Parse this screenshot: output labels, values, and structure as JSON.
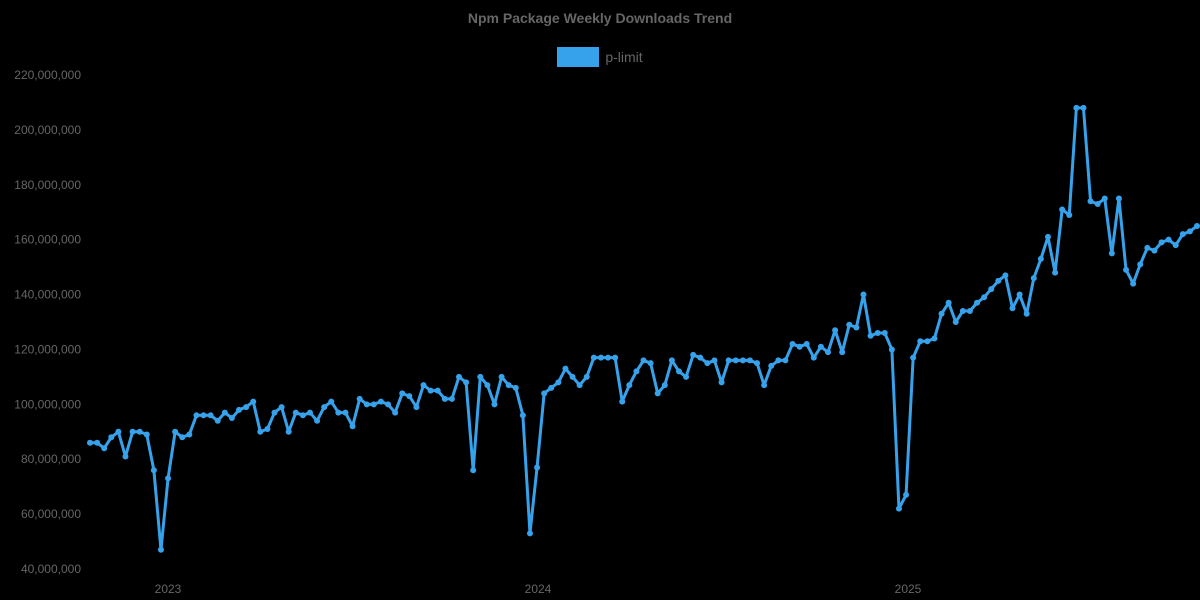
{
  "chart_data": {
    "type": "line",
    "title": "Npm Package Weekly Downloads Trend",
    "xlabel": "",
    "ylabel": "",
    "ylim": [
      40000000,
      220000000
    ],
    "yticks": [
      40000000,
      60000000,
      80000000,
      100000000,
      120000000,
      140000000,
      160000000,
      180000000,
      200000000,
      220000000
    ],
    "ytick_labels": [
      "40,000,000",
      "60,000,000",
      "80,000,000",
      "100,000,000",
      "120,000,000",
      "140,000,000",
      "160,000,000",
      "180,000,000",
      "200,000,000",
      "220,000,000"
    ],
    "xtick_labels": [
      "2023",
      "2024",
      "2025"
    ],
    "grid": false,
    "legend_position": "top",
    "series": [
      {
        "name": "p-limit",
        "color": "#36a2eb",
        "values": [
          86,
          86,
          84,
          88,
          90,
          81,
          90,
          90,
          89,
          76,
          47,
          73,
          90,
          88,
          89,
          96,
          96,
          96,
          94,
          97,
          95,
          98,
          99,
          101,
          90,
          91,
          97,
          99,
          90,
          97,
          96,
          97,
          94,
          99,
          101,
          97,
          97,
          92,
          102,
          100,
          100,
          101,
          100,
          97,
          104,
          103,
          99,
          107,
          105,
          105,
          102,
          102,
          110,
          108,
          76,
          110,
          107,
          100,
          110,
          107,
          106,
          96,
          53,
          77,
          104,
          106,
          108,
          113,
          110,
          107,
          110,
          117,
          117,
          117,
          117,
          101,
          107,
          112,
          116,
          115,
          104,
          107,
          116,
          112,
          110,
          118,
          117,
          115,
          116,
          108,
          116,
          116,
          116,
          116,
          115,
          107,
          114,
          116,
          116,
          122,
          121,
          122,
          117,
          121,
          119,
          127,
          119,
          129,
          128,
          140,
          125,
          126,
          126,
          120,
          62,
          67,
          117,
          123,
          123,
          124,
          133,
          137,
          130,
          134,
          134,
          137,
          139,
          142,
          145,
          147,
          135,
          140,
          133,
          146,
          153,
          161,
          148,
          171,
          169,
          208,
          208,
          174,
          173,
          175,
          155,
          175,
          149,
          144,
          151,
          157,
          156,
          159,
          160,
          158,
          162,
          163,
          165
        ]
      }
    ]
  },
  "title": "Npm Package Weekly Downloads Trend",
  "legend": {
    "label": "p-limit",
    "color": "#36a2eb"
  }
}
